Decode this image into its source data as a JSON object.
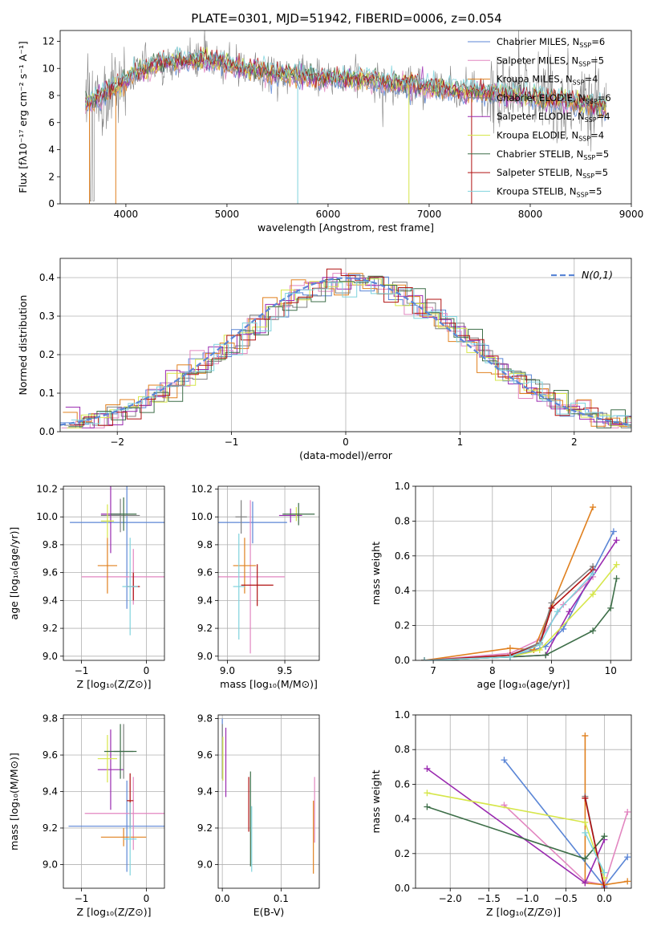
{
  "figure": {
    "title": "PLATE=0301, MJD=51942, FIBERID=0006, z=0.054"
  },
  "colors": {
    "Chabrier MILES": "#5b86d6",
    "Salpeter MILES": "#e286c0",
    "Kroupa MILES": "#e0801f",
    "Chabrier ELODIE": "#808080",
    "Salpeter ELODIE": "#9a2ab0",
    "Kroupa ELODIE": "#d6e64a",
    "Chabrier STELIB": "#3d6e48",
    "Salpeter STELIB": "#b01010",
    "Kroupa STELIB": "#7fd3dd"
  },
  "chart_data": [
    {
      "id": "spectrum",
      "type": "line",
      "xlabel": "wavelength [Angstrom, rest frame]",
      "ylabel": "Flux [fλ10⁻¹⁷ erg cm⁻² s⁻¹ A⁻¹]",
      "xlim": [
        3350,
        9000
      ],
      "ylim": [
        0,
        12.8
      ],
      "xticks": [
        4000,
        5000,
        6000,
        7000,
        8000,
        9000
      ],
      "yticks": [
        0,
        2,
        4,
        6,
        8,
        10,
        12
      ],
      "legend_position": "top-right",
      "legend": [
        {
          "name": "Chabrier MILES",
          "label": "Chabrier MILES, N",
          "sub": "SSP",
          "suffix": "=6"
        },
        {
          "name": "Salpeter MILES",
          "label": "Salpeter MILES, N",
          "sub": "SSP",
          "suffix": "=5"
        },
        {
          "name": "Kroupa MILES",
          "label": "Kroupa MILES, N",
          "sub": "SSP",
          "suffix": "=4"
        },
        {
          "name": "Chabrier ELODIE",
          "label": "Chabrier ELODIE, N",
          "sub": "SSP",
          "suffix": "=6"
        },
        {
          "name": "Salpeter ELODIE",
          "label": "Salpeter ELODIE, N",
          "sub": "SSP",
          "suffix": "=4"
        },
        {
          "name": "Kroupa ELODIE",
          "label": "Kroupa ELODIE, N",
          "sub": "SSP",
          "suffix": "=4"
        },
        {
          "name": "Chabrier STELIB",
          "label": "Chabrier STELIB, N",
          "sub": "SSP",
          "suffix": "=5"
        },
        {
          "name": "Salpeter STELIB",
          "label": "Salpeter STELIB, N",
          "sub": "SSP",
          "suffix": "=5"
        },
        {
          "name": "Kroupa STELIB",
          "label": "Kroupa STELIB, N",
          "sub": "SSP",
          "suffix": "=5"
        }
      ],
      "continuum_knots": [
        [
          3600,
          7.4
        ],
        [
          3700,
          7.7
        ],
        [
          3900,
          8.6
        ],
        [
          4100,
          9.6
        ],
        [
          4300,
          10.3
        ],
        [
          4500,
          10.5
        ],
        [
          4700,
          10.6
        ],
        [
          4900,
          10.5
        ],
        [
          5100,
          10.1
        ],
        [
          5500,
          9.6
        ],
        [
          6000,
          9.3
        ],
        [
          6500,
          9.0
        ],
        [
          7000,
          8.6
        ],
        [
          7500,
          8.2
        ],
        [
          8000,
          7.9
        ],
        [
          8500,
          7.4
        ],
        [
          8750,
          7.1
        ]
      ]
    },
    {
      "id": "residuals",
      "type": "histogram",
      "xlabel": "(data-model)/error",
      "ylabel": "Normed distribution",
      "xlim": [
        -2.5,
        2.5
      ],
      "ylim": [
        0,
        0.45
      ],
      "xticks": [
        -2,
        -1,
        0,
        1,
        2
      ],
      "yticks": [
        0,
        0.1,
        0.2,
        0.3,
        0.4
      ],
      "legend": "N(0,1)",
      "bin_edges_range": [
        -2.5,
        2.5
      ],
      "n_bins": 40,
      "jitter": [
        0.012,
        -0.01,
        0.02,
        -0.015,
        0.008,
        -0.02,
        0.015,
        0.0,
        -0.008,
        0.018
      ]
    },
    {
      "id": "age-vs-Z",
      "type": "errorbar",
      "xlabel": "Z [log₁₀(Z/Z⊙)]",
      "ylabel": "age  [log₁₀(age/yr)]",
      "xlim": [
        -1.28,
        0.28
      ],
      "ylim": [
        8.97,
        10.22
      ],
      "xticks": [
        -1,
        0
      ],
      "yticks": [
        9.0,
        9.2,
        9.4,
        9.6,
        9.8,
        10.0,
        10.2
      ],
      "points": [
        {
          "series": "Chabrier MILES",
          "x": -0.3,
          "y": 9.96,
          "xerr": 0.88,
          "yerr": 0.62
        },
        {
          "series": "Salpeter MILES",
          "x": -0.2,
          "y": 9.57,
          "xerr": 0.8,
          "yerr": 0.2
        },
        {
          "series": "Kroupa MILES",
          "x": -0.6,
          "y": 9.65,
          "xerr": 0.15,
          "yerr": 0.2
        },
        {
          "series": "Chabrier ELODIE",
          "x": -0.4,
          "y": 10.01,
          "xerr": 0.3,
          "yerr": 0.12
        },
        {
          "series": "Salpeter ELODIE",
          "x": -0.55,
          "y": 10.02,
          "xerr": 0.15,
          "yerr": 0.28
        },
        {
          "series": "Kroupa ELODIE",
          "x": -0.6,
          "y": 9.97,
          "xerr": 0.1,
          "yerr": 0.12
        },
        {
          "series": "Chabrier STELIB",
          "x": -0.35,
          "y": 10.02,
          "xerr": 0.2,
          "yerr": 0.12
        },
        {
          "series": "Salpeter STELIB",
          "x": -0.2,
          "y": 9.5,
          "xerr": 0.1,
          "yerr": 0.1
        },
        {
          "series": "Kroupa STELIB",
          "x": -0.25,
          "y": 9.5,
          "xerr": 0.12,
          "yerr": 0.35
        }
      ]
    },
    {
      "id": "age-vs-mass",
      "type": "errorbar",
      "xlabel": "mass [log₁₀(M/M⊙)]",
      "ylabel": "",
      "xlim": [
        8.92,
        9.8
      ],
      "ylim": [
        8.97,
        10.22
      ],
      "xticks": [
        9.0,
        9.5
      ],
      "yticks": [
        9.0,
        9.2,
        9.4,
        9.6,
        9.8,
        10.0,
        10.2
      ],
      "points": [
        {
          "series": "Chabrier MILES",
          "x": 9.22,
          "y": 9.96,
          "xerr": 0.3,
          "yerr": 0.15
        },
        {
          "series": "Salpeter MILES",
          "x": 9.2,
          "y": 9.57,
          "xerr": 0.3,
          "yerr": 0.55
        },
        {
          "series": "Kroupa MILES",
          "x": 9.15,
          "y": 9.65,
          "xerr": 0.1,
          "yerr": 0.2
        },
        {
          "series": "Chabrier ELODIE",
          "x": 9.12,
          "y": 10.0,
          "xerr": 0.05,
          "yerr": 0.12
        },
        {
          "series": "Salpeter ELODIE",
          "x": 9.55,
          "y": 10.01,
          "xerr": 0.1,
          "yerr": 0.05
        },
        {
          "series": "Kroupa ELODIE",
          "x": 9.6,
          "y": 10.02,
          "xerr": 0.05,
          "yerr": 0.05
        },
        {
          "series": "Chabrier STELIB",
          "x": 9.62,
          "y": 10.02,
          "xerr": 0.14,
          "yerr": 0.08
        },
        {
          "series": "Salpeter STELIB",
          "x": 9.26,
          "y": 9.51,
          "xerr": 0.14,
          "yerr": 0.15
        },
        {
          "series": "Kroupa STELIB",
          "x": 9.1,
          "y": 9.5,
          "xerr": 0.05,
          "yerr": 0.38
        }
      ]
    },
    {
      "id": "mass-weight-vs-age",
      "type": "line",
      "xlabel": "age  [log₁₀(age/yr)]",
      "ylabel": "mass weight",
      "xlim": [
        6.7,
        10.35
      ],
      "ylim": [
        0,
        1.0
      ],
      "xticks": [
        7,
        8,
        9,
        10
      ],
      "yticks": [
        0.0,
        0.2,
        0.4,
        0.6,
        0.8,
        1.0
      ],
      "series": [
        {
          "name": "Chabrier MILES",
          "x": [
            6.85,
            8.3,
            8.9,
            9.2,
            10.05
          ],
          "y": [
            0.0,
            0.02,
            0.08,
            0.18,
            0.74
          ]
        },
        {
          "name": "Salpeter MILES",
          "x": [
            6.85,
            8.3,
            8.8,
            9.2,
            9.7
          ],
          "y": [
            0.0,
            0.04,
            0.12,
            0.32,
            0.48
          ]
        },
        {
          "name": "Kroupa MILES",
          "x": [
            6.85,
            8.3,
            8.7,
            9.7
          ],
          "y": [
            0.0,
            0.07,
            0.06,
            0.88
          ]
        },
        {
          "name": "Chabrier ELODIE",
          "x": [
            6.85,
            8.3,
            8.8,
            9.0,
            9.7
          ],
          "y": [
            0.0,
            0.03,
            0.1,
            0.33,
            0.54
          ]
        },
        {
          "name": "Salpeter ELODIE",
          "x": [
            6.85,
            8.3,
            8.9,
            9.3,
            10.1
          ],
          "y": [
            0.0,
            0.02,
            0.03,
            0.28,
            0.69
          ]
        },
        {
          "name": "Kroupa ELODIE",
          "x": [
            6.85,
            8.3,
            8.8,
            9.7,
            10.1
          ],
          "y": [
            0.0,
            0.02,
            0.06,
            0.38,
            0.55
          ]
        },
        {
          "name": "Chabrier STELIB",
          "x": [
            6.85,
            8.3,
            8.9,
            9.7,
            10.0,
            10.1
          ],
          "y": [
            0.0,
            0.02,
            0.03,
            0.17,
            0.3,
            0.47
          ]
        },
        {
          "name": "Salpeter STELIB",
          "x": [
            6.85,
            8.3,
            8.8,
            9.0,
            9.7
          ],
          "y": [
            0.0,
            0.03,
            0.09,
            0.3,
            0.52
          ]
        },
        {
          "name": "Kroupa STELIB",
          "x": [
            6.85,
            8.3,
            8.8,
            9.1,
            9.7
          ],
          "y": [
            0.0,
            0.02,
            0.09,
            0.28,
            0.5
          ]
        }
      ]
    },
    {
      "id": "mass-vs-Z",
      "type": "errorbar",
      "xlabel": "Z [log₁₀(Z/Z⊙)]",
      "ylabel": "mass [log₁₀(M/M⊙)]",
      "xlim": [
        -1.28,
        0.28
      ],
      "ylim": [
        8.87,
        9.82
      ],
      "xticks": [
        -1,
        0
      ],
      "yticks": [
        9.0,
        9.2,
        9.4,
        9.6,
        9.8
      ],
      "points": [
        {
          "series": "Chabrier MILES",
          "x": -0.3,
          "y": 9.21,
          "xerr": 0.9,
          "yerr": 0.25
        },
        {
          "series": "Salpeter MILES",
          "x": -0.2,
          "y": 9.28,
          "xerr": 0.75,
          "yerr": 0.2
        },
        {
          "series": "Kroupa MILES",
          "x": -0.35,
          "y": 9.15,
          "xerr": 0.35,
          "yerr": 0.05
        },
        {
          "series": "Chabrier ELODIE",
          "x": -0.35,
          "y": 9.62,
          "xerr": 0.15,
          "yerr": 0.15
        },
        {
          "series": "Salpeter ELODIE",
          "x": -0.55,
          "y": 9.52,
          "xerr": 0.2,
          "yerr": 0.22
        },
        {
          "series": "Kroupa ELODIE",
          "x": -0.6,
          "y": 9.58,
          "xerr": 0.15,
          "yerr": 0.13
        },
        {
          "series": "Chabrier STELIB",
          "x": -0.4,
          "y": 9.62,
          "xerr": 0.25,
          "yerr": 0.15
        },
        {
          "series": "Salpeter STELIB",
          "x": -0.25,
          "y": 9.35,
          "xerr": 0.05,
          "yerr": 0.15
        },
        {
          "series": "Kroupa STELIB",
          "x": -0.25,
          "y": 9.14,
          "xerr": 0.1,
          "yerr": 0.2
        }
      ]
    },
    {
      "id": "mass-vs-ebv",
      "type": "errorbar",
      "xlabel": "E(B-V)",
      "ylabel": "",
      "xlim": [
        -0.007,
        0.165
      ],
      "ylim": [
        8.87,
        9.82
      ],
      "xticks": [
        0.0,
        0.1
      ],
      "yticks": [
        9.0,
        9.2,
        9.4,
        9.6,
        9.8
      ],
      "points": [
        {
          "series": "Chabrier MILES",
          "x": 0.0,
          "y": 9.7,
          "xerr": 0,
          "yerr": 0.1
        },
        {
          "series": "Salpeter MILES",
          "x": 0.157,
          "y": 9.3,
          "xerr": 0,
          "yerr": 0.18
        },
        {
          "series": "Kroupa MILES",
          "x": 0.155,
          "y": 9.15,
          "xerr": 0,
          "yerr": 0.2
        },
        {
          "series": "Chabrier ELODIE",
          "x": 0.0,
          "y": 9.62,
          "xerr": 0,
          "yerr": 0.15
        },
        {
          "series": "Salpeter ELODIE",
          "x": 0.006,
          "y": 9.56,
          "xerr": 0,
          "yerr": 0.19
        },
        {
          "series": "Kroupa ELODIE",
          "x": 0.001,
          "y": 9.58,
          "xerr": 0,
          "yerr": 0.12
        },
        {
          "series": "Chabrier STELIB",
          "x": 0.048,
          "y": 9.25,
          "xerr": 0,
          "yerr": 0.26
        },
        {
          "series": "Salpeter STELIB",
          "x": 0.045,
          "y": 9.33,
          "xerr": 0,
          "yerr": 0.15
        },
        {
          "series": "Kroupa STELIB",
          "x": 0.05,
          "y": 9.14,
          "xerr": 0,
          "yerr": 0.18
        }
      ]
    },
    {
      "id": "mass-weight-vs-Z",
      "type": "line",
      "xlabel": "Z [log₁₀(Z/Z⊙)]",
      "ylabel": "mass weight",
      "xlim": [
        -2.45,
        0.35
      ],
      "ylim": [
        0,
        1.0
      ],
      "xticks": [
        -2.0,
        -1.5,
        -1.0,
        -0.5,
        0.0
      ],
      "yticks": [
        0.0,
        0.2,
        0.4,
        0.6,
        0.8,
        1.0
      ],
      "series": [
        {
          "name": "Chabrier MILES",
          "x": [
            -1.3,
            0.0,
            0.3
          ],
          "y": [
            0.74,
            0.01,
            0.18
          ]
        },
        {
          "name": "Salpeter MILES",
          "x": [
            -1.3,
            -0.25,
            0.0,
            0.3
          ],
          "y": [
            0.48,
            0.04,
            0.02,
            0.44
          ]
        },
        {
          "name": "Kroupa MILES",
          "x": [
            -0.25,
            -0.25,
            0.0,
            0.3
          ],
          "y": [
            0.88,
            0.03,
            0.02,
            0.04
          ]
        },
        {
          "name": "Chabrier ELODIE",
          "x": [
            -0.25,
            0.0
          ],
          "y": [
            0.53,
            0.0
          ]
        },
        {
          "name": "Salpeter ELODIE",
          "x": [
            -2.3,
            -0.25,
            0.0
          ],
          "y": [
            0.69,
            0.03,
            0.28
          ]
        },
        {
          "name": "Kroupa ELODIE",
          "x": [
            -2.3,
            -0.25,
            0.0
          ],
          "y": [
            0.55,
            0.38,
            0.06
          ]
        },
        {
          "name": "Chabrier STELIB",
          "x": [
            -2.3,
            -0.25,
            0.0
          ],
          "y": [
            0.47,
            0.17,
            0.3
          ]
        },
        {
          "name": "Salpeter STELIB",
          "x": [
            -0.25,
            0.0
          ],
          "y": [
            0.52,
            0.0
          ]
        },
        {
          "name": "Kroupa STELIB",
          "x": [
            -0.25,
            0.0
          ],
          "y": [
            0.32,
            0.09
          ]
        }
      ]
    }
  ]
}
